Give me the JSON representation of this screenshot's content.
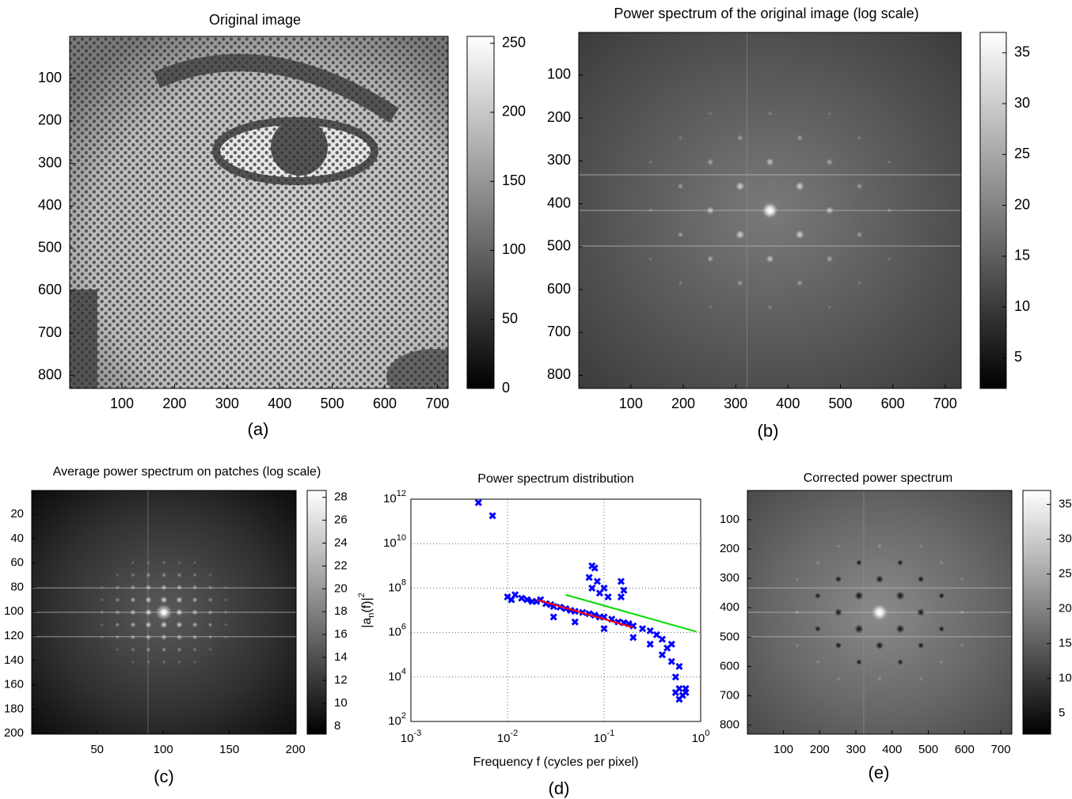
{
  "chart_data": [
    {
      "type": "image",
      "title": "Original image",
      "caption": "(a)",
      "image": "halftone",
      "xlim": [
        0.5,
        720.5
      ],
      "xticks": [
        100,
        200,
        300,
        400,
        500,
        600,
        700
      ],
      "ylim": [
        0.5,
        830.5
      ],
      "yticks": [
        100,
        200,
        300,
        400,
        500,
        600,
        700,
        800
      ],
      "clim": [
        0,
        255
      ],
      "cticks": [
        0,
        50,
        100,
        150,
        200,
        250
      ]
    },
    {
      "type": "image",
      "title": "Power spectrum of the original image (log scale)",
      "caption": "(b)",
      "image": "spectrum",
      "xlim": [
        0.5,
        730.5
      ],
      "xticks": [
        100,
        200,
        300,
        400,
        500,
        600,
        700
      ],
      "ylim": [
        0.5,
        830.5
      ],
      "yticks": [
        100,
        200,
        300,
        400,
        500,
        600,
        700,
        800
      ],
      "clim": [
        2,
        37
      ],
      "cticks": [
        5,
        10,
        15,
        20,
        25,
        30,
        35
      ]
    },
    {
      "type": "image",
      "title": "Average power spectrum on patches (log scale)",
      "caption": "(c)",
      "image": "average",
      "xlim": [
        0.5,
        200.5
      ],
      "xticks": [
        50,
        100,
        150,
        200
      ],
      "ylim": [
        0.5,
        200.5
      ],
      "yticks": [
        20,
        40,
        60,
        80,
        100,
        120,
        140,
        160,
        180,
        200
      ],
      "clim": [
        7.3,
        28.6
      ],
      "cticks": [
        8,
        10,
        12,
        14,
        16,
        18,
        20,
        22,
        24,
        26,
        28
      ]
    },
    {
      "type": "scatter",
      "title": "Power spectrum distribution",
      "caption": "(d)",
      "x_label": "Frequency f (cycles per pixel)",
      "y_label": [
        "|a",
        "n",
        "(f)|",
        "2"
      ],
      "log_x": true,
      "log_y": true,
      "grid": true,
      "xlim": [
        0.001,
        1
      ],
      "xticks": [
        {
          "value": 0.001,
          "label": "10",
          "exponent": "-3"
        },
        {
          "value": 0.01,
          "label": "10",
          "exponent": "-2"
        },
        {
          "value": 0.1,
          "label": "10",
          "exponent": "-1"
        },
        {
          "value": 1,
          "label": "10",
          "exponent": "0"
        }
      ],
      "ylim": [
        100,
        1000000000000
      ],
      "yticks": [
        {
          "value": 100,
          "label": "10",
          "exponent": "2"
        },
        {
          "value": 10000,
          "label": "10",
          "exponent": "4"
        },
        {
          "value": 1000000,
          "label": "10",
          "exponent": "6"
        },
        {
          "value": 100000000,
          "label": "10",
          "exponent": "8"
        },
        {
          "value": 10000000000,
          "label": "10",
          "exponent": "10"
        },
        {
          "value": 1000000000000,
          "label": "10",
          "exponent": "12"
        }
      ],
      "series": [
        {
          "style": "markers",
          "color": "#0000ff",
          "x": [
            0.005,
            0.007,
            0.01,
            0.011,
            0.012,
            0.014,
            0.016,
            0.018,
            0.02,
            0.022,
            0.025,
            0.028,
            0.03,
            0.035,
            0.04,
            0.045,
            0.05,
            0.06,
            0.07,
            0.08,
            0.09,
            0.1,
            0.12,
            0.14,
            0.16,
            0.18,
            0.2,
            0.25,
            0.3,
            0.35,
            0.4,
            0.45,
            0.5,
            0.55,
            0.6,
            0.65,
            0.7,
            0.55,
            0.6,
            0.075,
            0.08,
            0.07,
            0.075,
            0.09,
            0.085,
            0.1,
            0.11,
            0.15,
            0.16,
            0.15,
            0.5,
            0.6,
            0.7,
            0.03,
            0.05,
            0.1,
            0.2,
            0.3,
            0.4
          ],
          "values": [
            700000000000,
            180000000000,
            40000000,
            30000000,
            50000000,
            35000000,
            30000000,
            25000000,
            25000000,
            30000000,
            20000000,
            18000000,
            15000000,
            14000000,
            12000000,
            10000000,
            9000000,
            8000000,
            7000000,
            6000000,
            5000000,
            5000000,
            4000000,
            3000000,
            2800000,
            2500000,
            2000000,
            1500000,
            1200000,
            800000,
            500000,
            200000,
            50000,
            10000,
            3000,
            1500,
            2000,
            2000,
            1000,
            1000000000,
            800000000,
            300000000,
            100000000,
            60000000,
            200000000,
            100000000,
            40000000,
            200000000,
            80000000,
            40000000,
            300000,
            30000,
            3000,
            5000000,
            3000000,
            1500000,
            600000,
            300000,
            100000
          ]
        },
        {
          "style": "line",
          "color": "#ff0000",
          "x": [
            0.02,
            0.2
          ],
          "values": [
            30000000,
            1700000
          ]
        },
        {
          "style": "line",
          "color": "#00dd00",
          "x": [
            0.04,
            0.9
          ],
          "values": [
            50000000,
            1100000
          ]
        }
      ]
    },
    {
      "type": "image",
      "title": "Corrected power spectrum",
      "caption": "(e)",
      "image": "corrected",
      "xlim": [
        0.5,
        730.5
      ],
      "xticks": [
        100,
        200,
        300,
        400,
        500,
        600,
        700
      ],
      "ylim": [
        0.5,
        830.5
      ],
      "yticks": [
        100,
        200,
        300,
        400,
        500,
        600,
        700,
        800
      ],
      "clim": [
        2,
        37
      ],
      "cticks": [
        5,
        10,
        15,
        20,
        25,
        30,
        35
      ]
    }
  ]
}
